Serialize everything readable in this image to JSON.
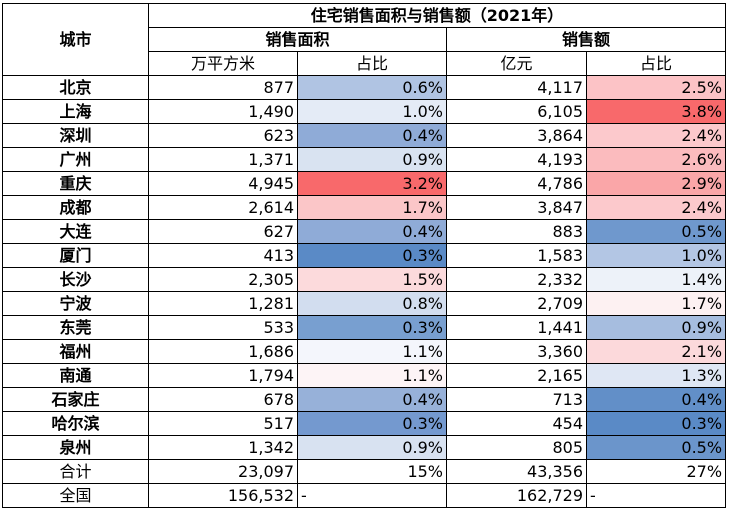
{
  "header": {
    "city_label": "城市",
    "group_title": "住宅销售面积与销售额（2021年）",
    "area_label": "销售面积",
    "amount_label": "销售额",
    "area_unit": "万平方米",
    "area_share": "占比",
    "amount_unit": "亿元",
    "amount_share": "占比"
  },
  "colors": {
    "red_strong": "#f8696b",
    "blue_strong": "#5a8ac6",
    "neutral": "#fcfcff"
  },
  "rows": [
    {
      "city": "北京",
      "area": "877",
      "area_pct": "0.6%",
      "amount": "4,117",
      "amount_pct": "2.5%",
      "area_bg": "#b0c4e3",
      "amount_bg": "#fcc3c6"
    },
    {
      "city": "上海",
      "area": "1,490",
      "area_pct": "1.0%",
      "amount": "6,105",
      "amount_pct": "3.8%",
      "area_bg": "#e4ebf6",
      "amount_bg": "#f8696b"
    },
    {
      "city": "深圳",
      "area": "623",
      "area_pct": "0.4%",
      "amount": "3,864",
      "amount_pct": "2.4%",
      "area_bg": "#8fabd7",
      "amount_bg": "#fcc9cc"
    },
    {
      "city": "广州",
      "area": "1,371",
      "area_pct": "0.9%",
      "amount": "4,193",
      "amount_pct": "2.6%",
      "area_bg": "#d9e3f1",
      "amount_bg": "#fbbbbe"
    },
    {
      "city": "重庆",
      "area": "4,945",
      "area_pct": "3.2%",
      "amount": "4,786",
      "amount_pct": "2.9%",
      "area_bg": "#f8696b",
      "amount_bg": "#faa6a8"
    },
    {
      "city": "成都",
      "area": "2,614",
      "area_pct": "1.7%",
      "amount": "3,847",
      "amount_pct": "2.4%",
      "area_bg": "#fbc6c8",
      "amount_bg": "#fcc9cc"
    },
    {
      "city": "大连",
      "area": "627",
      "area_pct": "0.4%",
      "amount": "883",
      "amount_pct": "0.5%",
      "area_bg": "#8fabd7",
      "amount_bg": "#6f98cd"
    },
    {
      "city": "厦门",
      "area": "413",
      "area_pct": "0.3%",
      "amount": "1,583",
      "amount_pct": "1.0%",
      "area_bg": "#5a8ac6",
      "amount_bg": "#b3c6e4"
    },
    {
      "city": "长沙",
      "area": "2,305",
      "area_pct": "1.5%",
      "amount": "2,332",
      "amount_pct": "1.4%",
      "area_bg": "#fcdadc",
      "amount_bg": "#edf2f9"
    },
    {
      "city": "宁波",
      "area": "1,281",
      "area_pct": "0.8%",
      "amount": "2,709",
      "amount_pct": "1.7%",
      "area_bg": "#d2ddef",
      "amount_bg": "#fdf1f2"
    },
    {
      "city": "东莞",
      "area": "533",
      "area_pct": "0.3%",
      "amount": "1,441",
      "amount_pct": "0.9%",
      "area_bg": "#789fd0",
      "amount_bg": "#a6bddf"
    },
    {
      "city": "福州",
      "area": "1,686",
      "area_pct": "1.1%",
      "amount": "3,360",
      "amount_pct": "2.1%",
      "area_bg": "#f4f6fc",
      "amount_bg": "#fcd9db"
    },
    {
      "city": "南通",
      "area": "1,794",
      "area_pct": "1.1%",
      "amount": "2,165",
      "amount_pct": "1.3%",
      "area_bg": "#fdf4f6",
      "amount_bg": "#dfe7f4"
    },
    {
      "city": "石家庄",
      "area": "678",
      "area_pct": "0.4%",
      "amount": "713",
      "amount_pct": "0.4%",
      "area_bg": "#97b1d9",
      "amount_bg": "#628fc8"
    },
    {
      "city": "哈尔滨",
      "area": "517",
      "area_pct": "0.3%",
      "amount": "454",
      "amount_pct": "0.3%",
      "area_bg": "#7499cf",
      "amount_bg": "#5a8ac6"
    },
    {
      "city": "泉州",
      "area": "1,342",
      "area_pct": "0.9%",
      "amount": "805",
      "amount_pct": "0.5%",
      "area_bg": "#d8e2f1",
      "amount_bg": "#6b95cb"
    }
  ],
  "total": {
    "label": "合计",
    "area": "23,097",
    "area_pct": "15%",
    "amount": "43,356",
    "amount_pct": "27%"
  },
  "national": {
    "label": "全国",
    "area": "156,532",
    "area_pct": "-",
    "amount": "162,729",
    "amount_pct": "-"
  }
}
